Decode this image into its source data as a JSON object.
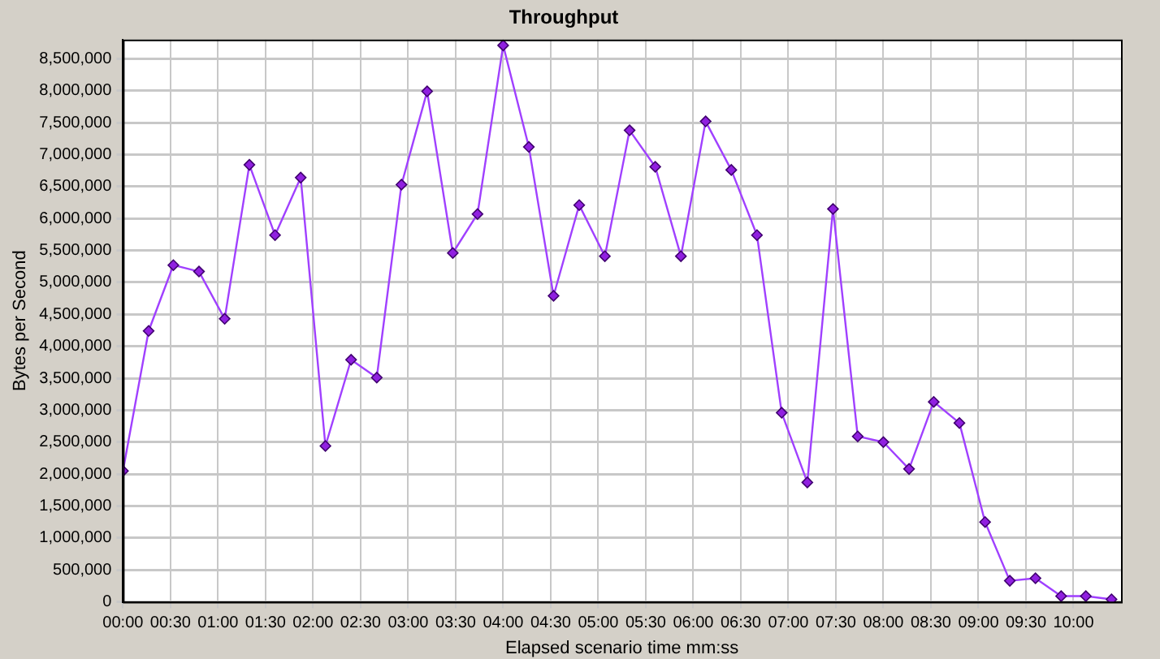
{
  "chart_data": {
    "type": "line",
    "title": "Throughput",
    "xlabel": "Elapsed scenario time mm:ss",
    "ylabel": "Bytes per Second",
    "x": [
      0,
      0.27,
      0.53,
      0.8,
      1.07,
      1.33,
      1.6,
      1.87,
      2.13,
      2.4,
      2.67,
      2.93,
      3.2,
      3.47,
      3.73,
      4,
      4.27,
      4.53,
      4.8,
      5.07,
      5.33,
      5.6,
      5.87,
      6.13,
      6.4,
      6.67,
      6.93,
      7.2,
      7.47,
      7.73,
      8,
      8.27,
      8.53,
      8.8,
      9.07,
      9.33,
      9.6,
      9.87,
      10.13,
      10.4
    ],
    "series": [
      {
        "color": "#a040ff",
        "values": [
          2050000,
          4240000,
          5270000,
          5170000,
          4430000,
          6840000,
          5740000,
          6640000,
          2440000,
          3790000,
          3510000,
          6530000,
          7990000,
          5460000,
          6070000,
          8710000,
          7120000,
          4790000,
          6210000,
          5410000,
          7380000,
          6810000,
          5410000,
          7520000,
          6760000,
          5740000,
          2960000,
          1870000,
          6150000,
          2590000,
          2500000,
          2080000,
          3130000,
          2800000,
          1250000,
          330000,
          370000,
          90000,
          90000,
          40000
        ]
      }
    ],
    "xlim": [
      0,
      10.5
    ],
    "xticks": [
      {
        "value": 0,
        "label": "00:00"
      },
      {
        "value": 0.5,
        "label": "00:30"
      },
      {
        "value": 1,
        "label": "01:00"
      },
      {
        "value": 1.5,
        "label": "01:30"
      },
      {
        "value": 2,
        "label": "02:00"
      },
      {
        "value": 2.5,
        "label": "02:30"
      },
      {
        "value": 3,
        "label": "03:00"
      },
      {
        "value": 3.5,
        "label": "03:30"
      },
      {
        "value": 4,
        "label": "04:00"
      },
      {
        "value": 4.5,
        "label": "04:30"
      },
      {
        "value": 5,
        "label": "05:00"
      },
      {
        "value": 5.5,
        "label": "05:30"
      },
      {
        "value": 6,
        "label": "06:00"
      },
      {
        "value": 6.5,
        "label": "06:30"
      },
      {
        "value": 7,
        "label": "07:00"
      },
      {
        "value": 7.5,
        "label": "07:30"
      },
      {
        "value": 8,
        "label": "08:00"
      },
      {
        "value": 8.5,
        "label": "08:30"
      },
      {
        "value": 9,
        "label": "09:00"
      },
      {
        "value": 9.5,
        "label": "09:30"
      },
      {
        "value": 10,
        "label": "10:00"
      }
    ],
    "ylim": [
      0,
      8800000
    ],
    "yticks": [
      {
        "value": 0,
        "label": "0"
      },
      {
        "value": 500000,
        "label": "500,000"
      },
      {
        "value": 1000000,
        "label": "1,000,000"
      },
      {
        "value": 1500000,
        "label": "1,500,000"
      },
      {
        "value": 2000000,
        "label": "2,000,000"
      },
      {
        "value": 2500000,
        "label": "2,500,000"
      },
      {
        "value": 3000000,
        "label": "3,000,000"
      },
      {
        "value": 3500000,
        "label": "3,500,000"
      },
      {
        "value": 4000000,
        "label": "4,000,000"
      },
      {
        "value": 4500000,
        "label": "4,500,000"
      },
      {
        "value": 5000000,
        "label": "5,000,000"
      },
      {
        "value": 5500000,
        "label": "5,500,000"
      },
      {
        "value": 6000000,
        "label": "6,000,000"
      },
      {
        "value": 6500000,
        "label": "6,500,000"
      },
      {
        "value": 7000000,
        "label": "7,000,000"
      },
      {
        "value": 7500000,
        "label": "7,500,000"
      },
      {
        "value": 8000000,
        "label": "8,000,000"
      },
      {
        "value": 8500000,
        "label": "8,500,000"
      }
    ],
    "grid": true,
    "legend": false,
    "marker": "diamond",
    "line_style": "solid"
  }
}
